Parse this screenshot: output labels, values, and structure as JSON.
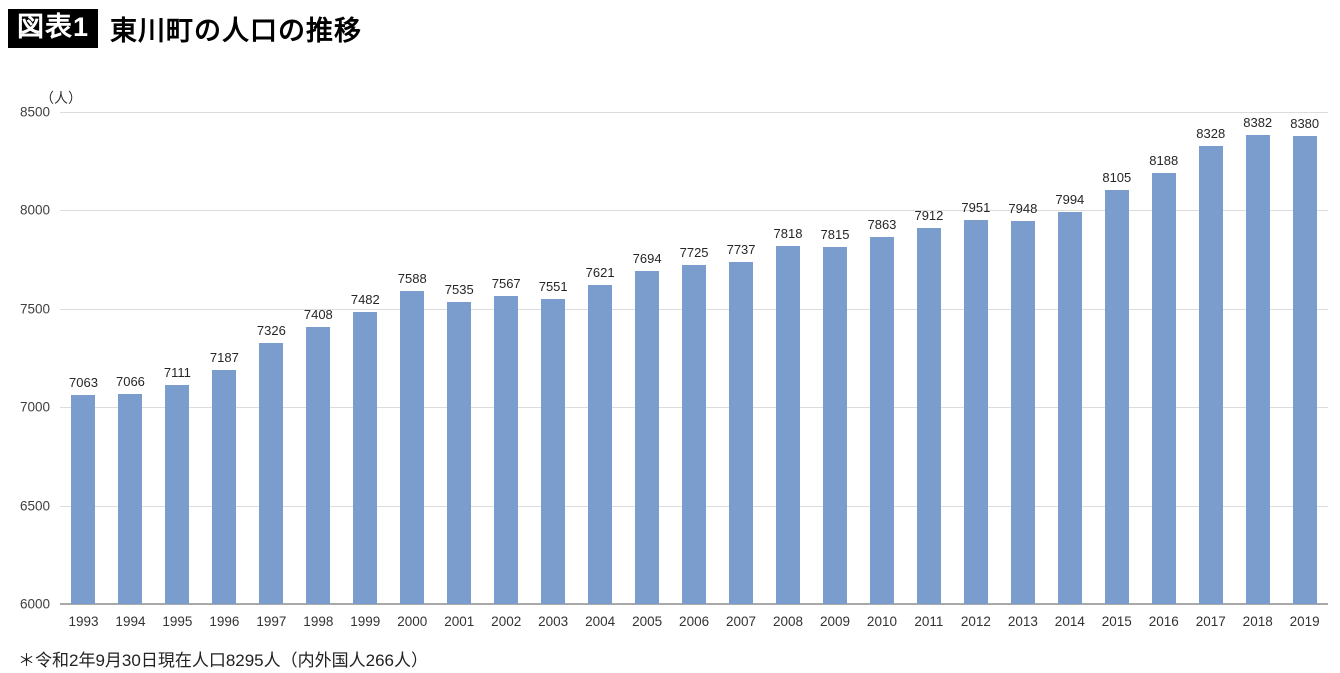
{
  "header": {
    "badge": "図表1",
    "title": "東川町の人口の推移"
  },
  "chart_data": {
    "type": "bar",
    "title": "東川町の人口の推移",
    "unit_label": "（人）",
    "categories": [
      "1993",
      "1994",
      "1995",
      "1996",
      "1997",
      "1998",
      "1999",
      "2000",
      "2001",
      "2002",
      "2003",
      "2004",
      "2005",
      "2006",
      "2007",
      "2008",
      "2009",
      "2010",
      "2011",
      "2012",
      "2013",
      "2014",
      "2015",
      "2016",
      "2017",
      "2018",
      "2019"
    ],
    "values": [
      7063,
      7066,
      7111,
      7187,
      7326,
      7408,
      7482,
      7588,
      7535,
      7567,
      7551,
      7621,
      7694,
      7725,
      7737,
      7818,
      7815,
      7863,
      7912,
      7951,
      7948,
      7994,
      8105,
      8188,
      8328,
      8382,
      8380
    ],
    "xlabel": "",
    "ylabel": "（人）",
    "ylim": [
      6000,
      8500
    ],
    "yticks": [
      6000,
      6500,
      7000,
      7500,
      8000,
      8500
    ],
    "bar_color": "#7B9DCE",
    "grid": true,
    "data_labels": true,
    "legend": "none"
  },
  "footnote": "＊令和2年9月30日現在人口8295人（内外国人266人）"
}
